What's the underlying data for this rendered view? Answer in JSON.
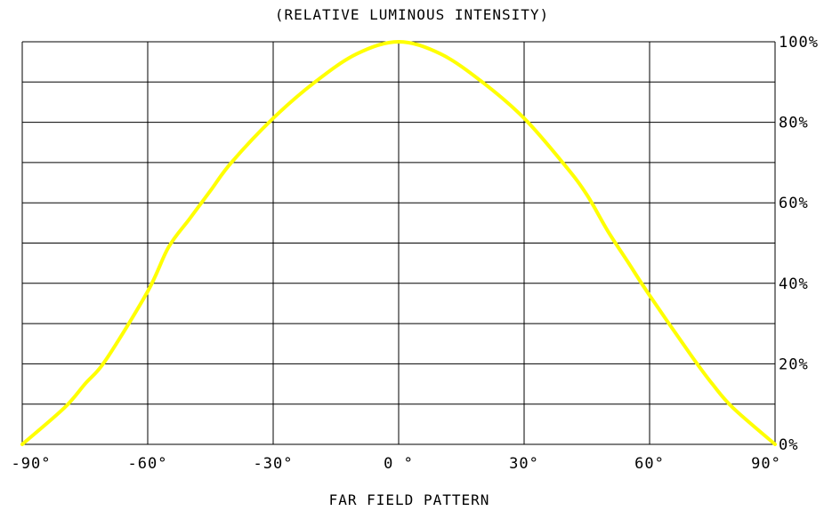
{
  "chart_data": {
    "type": "line",
    "title": "(RELATIVE LUMINOUS INTENSITY)",
    "xlabel": "FAR FIELD PATTERN",
    "ylabel": "",
    "xlim": [
      -90,
      90
    ],
    "ylim": [
      0,
      100
    ],
    "grid": true,
    "x_ticks": [
      -90,
      -60,
      -30,
      0,
      30,
      60,
      90
    ],
    "x_tick_labels": [
      "-90°",
      "-60°",
      "-30°",
      "0 °",
      "30°",
      "60°",
      "90°"
    ],
    "y_ticks": [
      0,
      20,
      40,
      60,
      80,
      100
    ],
    "y_tick_labels": [
      "0%",
      "20%",
      "40%",
      "60%",
      "80%",
      "100%"
    ],
    "y_axis_side": "right",
    "line_color": "#ffff00",
    "series": [
      {
        "x": [
          -90,
          -80,
          -75,
          -70,
          -60,
          -55,
          -50,
          -45,
          -40,
          -30,
          -20,
          -10,
          0,
          10,
          20,
          30,
          40,
          45,
          50,
          55,
          60,
          70,
          75,
          80,
          90
        ],
        "values": [
          0,
          9,
          15,
          21,
          38,
          49,
          56,
          63,
          70,
          81,
          90,
          97,
          100,
          97,
          90,
          81,
          69,
          62,
          53,
          45,
          37,
          22,
          15,
          9,
          0
        ]
      }
    ]
  }
}
